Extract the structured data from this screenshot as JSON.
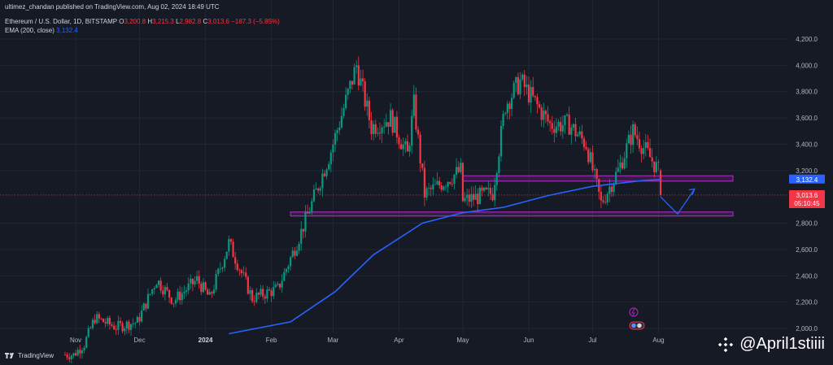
{
  "header": {
    "publish": "ultimez_chandan published on TradingView.com, Aug 02, 2024 18:49 UTC",
    "symbol": "Ethereum / U.S. Dollar, 1D, BITSTAMP",
    "o_label": "O",
    "o_val": "3,200.8",
    "h_label": "H",
    "h_val": "3,215.3",
    "l_label": "L",
    "l_val": "2,982.8",
    "c_label": "C",
    "c_val": "3,013.6",
    "change": "−187.3 (−5.85%)",
    "ema_label": "EMA (200, close)",
    "ema_val": "3,132.4"
  },
  "footer": {
    "brand": "TradingView"
  },
  "watermark": {
    "text": "@April1stiiii",
    "logo": "binance-square-logo-icon"
  },
  "colors": {
    "up": "#089981",
    "down": "#f23645",
    "ema": "#2962ff",
    "zone": "#9c27b0",
    "bg": "#161a25"
  },
  "chart_data": {
    "type": "candlestick",
    "x_ticks": [
      "Nov",
      "Dec",
      "2024",
      "Feb",
      "Mar",
      "Apr",
      "May",
      "Jun",
      "Jul",
      "Aug"
    ],
    "y_ticks": [
      "4,200.0",
      "4,000.0",
      "3,800.0",
      "3,600.0",
      "3,400.0",
      "3,200.0",
      "2,800.0",
      "2,600.0",
      "2,400.0",
      "2,200.0",
      "2,000.0"
    ],
    "ylim": [
      1960,
      4300
    ],
    "price_labels": [
      {
        "value": 3132.4,
        "text": "3,132.4",
        "color": "#2962ff"
      },
      {
        "value": 3013.6,
        "text": "3,013.6",
        "subtext": "05:10:45",
        "color": "#f23645"
      }
    ],
    "ohlc_anchors": [
      {
        "date": "2023-10-27",
        "close": 1800
      },
      {
        "date": "2023-10-31",
        "close": 1800
      },
      {
        "date": "2023-11-05",
        "close": 1880
      },
      {
        "date": "2023-11-10",
        "close": 2080
      },
      {
        "date": "2023-11-20",
        "close": 2010
      },
      {
        "date": "2023-11-30",
        "close": 2050
      },
      {
        "date": "2023-12-09",
        "close": 2370
      },
      {
        "date": "2023-12-17",
        "close": 2210
      },
      {
        "date": "2023-12-28",
        "close": 2370
      },
      {
        "date": "2024-01-03",
        "close": 2230
      },
      {
        "date": "2024-01-12",
        "close": 2650
      },
      {
        "date": "2024-01-23",
        "close": 2230
      },
      {
        "date": "2024-02-04",
        "close": 2300
      },
      {
        "date": "2024-02-13",
        "close": 2650
      },
      {
        "date": "2024-02-20",
        "close": 2950
      },
      {
        "date": "2024-02-29",
        "close": 3350
      },
      {
        "date": "2024-03-12",
        "close": 4000
      },
      {
        "date": "2024-03-19",
        "close": 3530
      },
      {
        "date": "2024-03-28",
        "close": 3600
      },
      {
        "date": "2024-04-05",
        "close": 3320
      },
      {
        "date": "2024-04-08",
        "close": 3700
      },
      {
        "date": "2024-04-13",
        "close": 3020
      },
      {
        "date": "2024-04-18",
        "close": 3070
      },
      {
        "date": "2024-04-30",
        "close": 3200
      },
      {
        "date": "2024-05-01",
        "close": 2970
      },
      {
        "date": "2024-05-15",
        "close": 3030
      },
      {
        "date": "2024-05-21",
        "close": 3700
      },
      {
        "date": "2024-05-28",
        "close": 3880
      },
      {
        "date": "2024-06-11",
        "close": 3550
      },
      {
        "date": "2024-06-20",
        "close": 3550
      },
      {
        "date": "2024-06-28",
        "close": 3400
      },
      {
        "date": "2024-07-05",
        "close": 2950
      },
      {
        "date": "2024-07-13",
        "close": 3200
      },
      {
        "date": "2024-07-20",
        "close": 3500
      },
      {
        "date": "2024-07-28",
        "close": 3300
      },
      {
        "date": "2024-08-01",
        "close": 3200
      },
      {
        "date": "2024-08-02",
        "close": 3013.6
      }
    ],
    "ema_200": [
      {
        "date": "2024-01-12",
        "value": 1960
      },
      {
        "date": "2024-02-10",
        "value": 2050
      },
      {
        "date": "2024-03-02",
        "value": 2280
      },
      {
        "date": "2024-03-20",
        "value": 2560
      },
      {
        "date": "2024-04-12",
        "value": 2800
      },
      {
        "date": "2024-05-01",
        "value": 2880
      },
      {
        "date": "2024-05-20",
        "value": 2920
      },
      {
        "date": "2024-06-10",
        "value": 3010
      },
      {
        "date": "2024-07-01",
        "value": 3080
      },
      {
        "date": "2024-07-25",
        "value": 3125
      },
      {
        "date": "2024-08-02",
        "value": 3132.4
      }
    ],
    "zones": [
      {
        "name": "upper-zone",
        "from": "2024-05-01",
        "to": "2024-09-05",
        "low": 3120,
        "high": 3160
      },
      {
        "name": "lower-zone",
        "from": "2024-02-10",
        "to": "2024-09-05",
        "low": 2855,
        "high": 2885
      }
    ],
    "projection": [
      {
        "date": "2024-08-02",
        "value": 3000
      },
      {
        "date": "2024-08-10",
        "value": 2870
      },
      {
        "date": "2024-08-18",
        "value": 3060
      }
    ],
    "grid": true
  }
}
